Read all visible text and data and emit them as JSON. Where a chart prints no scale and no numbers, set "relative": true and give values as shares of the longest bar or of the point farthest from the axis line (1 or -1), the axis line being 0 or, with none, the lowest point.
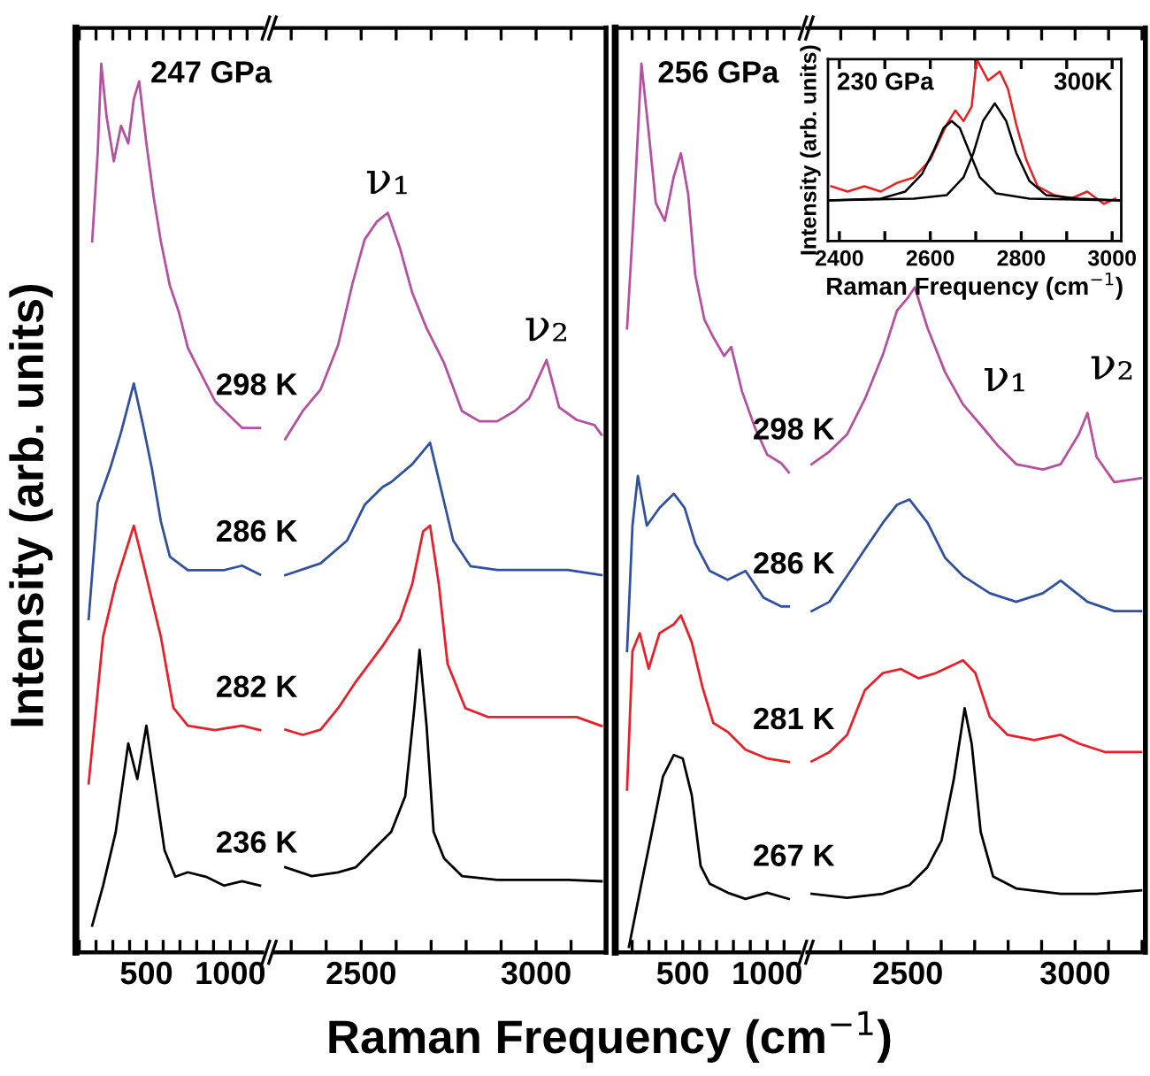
{
  "chart_data": [
    {
      "type": "line",
      "relative": true,
      "title": "247 GPa",
      "xlabel": "Raman Frequency (cm$^{−1}$)",
      "ylabel": "Intensity (arb. units)",
      "xlim": [
        80,
        1190
      ],
      "xticks": [
        {
          "value": 100,
          "label": null
        },
        {
          "value": 200,
          "label": null
        },
        {
          "value": 300,
          "label": null
        },
        {
          "value": 400,
          "label": null
        },
        500,
        {
          "value": 600,
          "label": null
        },
        {
          "value": 700,
          "label": null
        },
        {
          "value": 800,
          "label": null
        },
        {
          "value": 900,
          "label": null
        },
        1000,
        {
          "value": 1100,
          "label": null
        }
      ],
      "series": [
        {
          "name": "298 K",
          "color": "#b5519e",
          "x": [
            177,
            210,
            231,
            263,
            306,
            349,
            392,
            425,
            457,
            500,
            543,
            586,
            640,
            694,
            747,
            801,
            855,
            909,
            962,
            1016,
            1070,
            1124,
            1177
          ],
          "values": [
            0.8,
            0.9,
            1.0,
            0.94,
            0.89,
            0.93,
            0.91,
            0.96,
            0.98,
            0.91,
            0.85,
            0.8,
            0.75,
            0.72,
            0.68,
            0.66,
            0.64,
            0.62,
            0.61,
            0.6,
            0.59,
            0.59,
            0.59
          ]
        },
        {
          "name": "286 K",
          "color": "#3050a0",
          "x": [
            156,
            210,
            285,
            349,
            425,
            478,
            532,
            586,
            640,
            747,
            855,
            962,
            1070,
            1177
          ],
          "values": [
            0.375,
            0.505,
            0.545,
            0.585,
            0.64,
            0.595,
            0.545,
            0.485,
            0.445,
            0.43,
            0.43,
            0.43,
            0.435,
            0.425
          ]
        },
        {
          "name": "282 K",
          "color": "#e8202a",
          "x": [
            156,
            242,
            317,
            425,
            478,
            586,
            661,
            747,
            909,
            1070,
            1177
          ],
          "values": [
            0.19,
            0.355,
            0.415,
            0.48,
            0.44,
            0.355,
            0.275,
            0.255,
            0.25,
            0.255,
            0.25
          ]
        },
        {
          "name": "236 K",
          "color": "#000000",
          "x": [
            177,
            242,
            317,
            392,
            446,
            500,
            554,
            608,
            672,
            747,
            855,
            962,
            1070,
            1177
          ],
          "values": [
            0.03,
            0.075,
            0.135,
            0.235,
            0.195,
            0.255,
            0.185,
            0.115,
            0.085,
            0.09,
            0.085,
            0.075,
            0.08,
            0.075
          ]
        }
      ]
    },
    {
      "type": "line",
      "relative": true,
      "xlim": [
        2250,
        3200
      ],
      "xticks": [
        {
          "value": 2300,
          "label": null
        },
        {
          "value": 2400,
          "label": null
        },
        2500,
        {
          "value": 2600,
          "label": null
        },
        {
          "value": 2700,
          "label": null
        },
        {
          "value": 2800,
          "label": null
        },
        {
          "value": 2900,
          "label": null
        },
        3000,
        {
          "value": 3100,
          "label": null
        }
      ],
      "annotations": [
        {
          "text": "ν₁",
          "x": 2576,
          "y": 1.0
        },
        {
          "text": "ν₂",
          "x": 3030,
          "y": 0.801
        }
      ],
      "series": [
        {
          "color": "#b5519e",
          "x": [
            2283,
            2333,
            2384,
            2434,
            2475,
            2510,
            2545,
            2576,
            2611,
            2646,
            2687,
            2737,
            2788,
            2838,
            2889,
            2939,
            2980,
            3030,
            3066,
            3116,
            3167,
            3187
          ],
          "values": [
            0.694,
            0.732,
            0.761,
            0.821,
            0.904,
            0.964,
            0.988,
            1.0,
            0.952,
            0.892,
            0.844,
            0.797,
            0.732,
            0.718,
            0.718,
            0.732,
            0.749,
            0.801,
            0.737,
            0.72,
            0.713,
            0.7
          ]
        },
        {
          "color": "#3050a0",
          "x": [
            2283,
            2384,
            2460,
            2510,
            2561,
            2586,
            2646,
            2697,
            2727,
            2763,
            2813,
            2889,
            2990,
            3091,
            3187
          ],
          "values": [
            0.51,
            0.526,
            0.557,
            0.605,
            0.629,
            0.636,
            0.66,
            0.689,
            0.629,
            0.557,
            0.522,
            0.517,
            0.517,
            0.517,
            0.51
          ]
        },
        {
          "color": "#e8202a",
          "x": [
            2283,
            2333,
            2384,
            2434,
            2485,
            2561,
            2611,
            2646,
            2677,
            2697,
            2722,
            2747,
            2798,
            2864,
            2939,
            3040,
            3116,
            3187
          ],
          "values": [
            0.301,
            0.294,
            0.301,
            0.33,
            0.366,
            0.414,
            0.45,
            0.498,
            0.569,
            0.577,
            0.498,
            0.39,
            0.33,
            0.318,
            0.318,
            0.318,
            0.318,
            0.306
          ]
        },
        {
          "color": "#000000",
          "x": [
            2283,
            2359,
            2434,
            2485,
            2535,
            2586,
            2626,
            2652,
            2667,
            2687,
            2707,
            2737,
            2788,
            2889,
            2990,
            3091,
            3187
          ],
          "values": [
            0.115,
            0.103,
            0.108,
            0.115,
            0.139,
            0.163,
            0.211,
            0.33,
            0.409,
            0.306,
            0.163,
            0.127,
            0.103,
            0.098,
            0.098,
            0.098,
            0.096
          ]
        }
      ]
    },
    {
      "type": "line",
      "relative": true,
      "title": "256 GPa",
      "xlim": [
        100,
        1190
      ],
      "xticks": [
        {
          "value": 200,
          "label": null
        },
        {
          "value": 300,
          "label": null
        },
        {
          "value": 400,
          "label": null
        },
        500,
        {
          "value": 600,
          "label": null
        },
        {
          "value": 700,
          "label": null
        },
        {
          "value": 800,
          "label": null
        },
        {
          "value": 900,
          "label": null
        },
        1000,
        {
          "value": 1100,
          "label": null
        }
      ],
      "series": [
        {
          "name": "298 K",
          "color": "#b5519e",
          "x": [
            170,
            213,
            255,
            298,
            340,
            394,
            447,
            489,
            532,
            574,
            628,
            681,
            745,
            787,
            851,
            926,
            1000,
            1085,
            1128
          ],
          "values": [
            0.702,
            0.843,
            1.0,
            0.923,
            0.843,
            0.823,
            0.873,
            0.899,
            0.853,
            0.762,
            0.712,
            0.692,
            0.671,
            0.681,
            0.631,
            0.591,
            0.56,
            0.55,
            0.54
          ]
        },
        {
          "name": "286 K",
          "color": "#3050a0",
          "x": [
            170,
            202,
            234,
            287,
            362,
            447,
            511,
            574,
            660,
            766,
            872,
            979,
            1085,
            1128
          ],
          "values": [
            0.339,
            0.48,
            0.536,
            0.48,
            0.5,
            0.516,
            0.5,
            0.46,
            0.429,
            0.419,
            0.429,
            0.399,
            0.389,
            0.389
          ]
        },
        {
          "name": "281 K",
          "color": "#e8202a",
          "x": [
            170,
            202,
            245,
            298,
            362,
            447,
            489,
            553,
            617,
            681,
            766,
            872,
            1000,
            1128
          ],
          "values": [
            0.183,
            0.339,
            0.359,
            0.319,
            0.359,
            0.369,
            0.379,
            0.349,
            0.298,
            0.258,
            0.248,
            0.228,
            0.218,
            0.214
          ]
        },
        {
          "name": "267 K",
          "color": "#000000",
          "x": [
            181,
            255,
            319,
            383,
            447,
            500,
            553,
            606,
            660,
            766,
            872,
            1000,
            1128
          ],
          "values": [
            0.006,
            0.077,
            0.137,
            0.198,
            0.222,
            0.218,
            0.177,
            0.097,
            0.077,
            0.067,
            0.06,
            0.067,
            0.06
          ]
        }
      ]
    },
    {
      "type": "line",
      "relative": true,
      "xlim": [
        2200,
        3210
      ],
      "xticks": [
        {
          "value": 2300,
          "label": null
        },
        {
          "value": 2400,
          "label": null
        },
        2500,
        {
          "value": 2600,
          "label": null
        },
        {
          "value": 2700,
          "label": null
        },
        {
          "value": 2800,
          "label": null
        },
        {
          "value": 2900,
          "label": null
        },
        3000,
        {
          "value": 3100,
          "label": null
        },
        {
          "value": 3200,
          "label": null
        }
      ],
      "annotations": [
        {
          "text": "ν₁",
          "x": 2718,
          "y": 0.793
        },
        {
          "text": "ν₂",
          "x": 3037,
          "y": 0.811
        }
      ],
      "series": [
        {
          "color": "#b5519e",
          "x": [
            2213,
            2266,
            2319,
            2372,
            2426,
            2468,
            2500,
            2521,
            2559,
            2612,
            2665,
            2718,
            2771,
            2824,
            2904,
            2957,
            3011,
            3037,
            3064,
            3117,
            3197
          ],
          "values": [
            0.734,
            0.753,
            0.779,
            0.832,
            0.899,
            0.965,
            0.984,
            1.0,
            0.939,
            0.872,
            0.824,
            0.793,
            0.761,
            0.734,
            0.726,
            0.734,
            0.779,
            0.811,
            0.745,
            0.707,
            0.713
          ]
        },
        {
          "color": "#3050a0",
          "x": [
            2213,
            2266,
            2319,
            2372,
            2426,
            2468,
            2505,
            2559,
            2612,
            2665,
            2745,
            2824,
            2904,
            2957,
            3037,
            3117,
            3197
          ],
          "values": [
            0.513,
            0.527,
            0.566,
            0.606,
            0.646,
            0.673,
            0.681,
            0.646,
            0.593,
            0.566,
            0.54,
            0.527,
            0.54,
            0.559,
            0.527,
            0.513,
            0.513
          ]
        },
        {
          "color": "#e8202a",
          "x": [
            2213,
            2266,
            2319,
            2372,
            2426,
            2479,
            2532,
            2585,
            2665,
            2702,
            2745,
            2798,
            2878,
            2957,
            3011,
            3090,
            3197
          ],
          "values": [
            0.287,
            0.301,
            0.327,
            0.394,
            0.42,
            0.426,
            0.412,
            0.42,
            0.439,
            0.42,
            0.354,
            0.327,
            0.319,
            0.327,
            0.314,
            0.301,
            0.301
          ]
        },
        {
          "color": "#000000",
          "x": [
            2213,
            2319,
            2426,
            2505,
            2559,
            2601,
            2638,
            2670,
            2691,
            2718,
            2755,
            2824,
            2957,
            3064,
            3197
          ],
          "values": [
            0.088,
            0.082,
            0.088,
            0.101,
            0.128,
            0.168,
            0.261,
            0.367,
            0.314,
            0.181,
            0.114,
            0.096,
            0.088,
            0.088,
            0.093
          ]
        }
      ]
    },
    {
      "type": "line",
      "relative": true,
      "title": "230 GPa",
      "annotations": [
        "300K"
      ],
      "xlabel": "Raman Frequency (cm$^{−1}$)",
      "ylabel": "Intensity (arb. units)",
      "xlim": [
        2375,
        3020
      ],
      "xticks": [
        2400,
        {
          "value": 2500,
          "label": null
        },
        2600,
        {
          "value": 2700,
          "label": null
        },
        2800,
        {
          "value": 2900,
          "label": null
        },
        3000
      ],
      "series": [
        {
          "color": "#e82020",
          "x": [
            2382,
            2418,
            2455,
            2491,
            2527,
            2564,
            2582,
            2600,
            2618,
            2636,
            2655,
            2673,
            2691,
            2702,
            2727,
            2753,
            2771,
            2789,
            2811,
            2836,
            2873,
            2909,
            2945,
            2982,
            3007
          ],
          "values": [
            0.301,
            0.272,
            0.301,
            0.272,
            0.32,
            0.35,
            0.398,
            0.447,
            0.544,
            0.641,
            0.718,
            0.66,
            0.738,
            1.0,
            0.883,
            0.932,
            0.835,
            0.641,
            0.447,
            0.301,
            0.252,
            0.233,
            0.272,
            0.204,
            0.233
          ]
        },
        {
          "color": "#000000",
          "x": [
            2375,
            2491,
            2545,
            2582,
            2607,
            2629,
            2647,
            2665,
            2687,
            2709,
            2745,
            2818,
            3015
          ],
          "values": [
            0.223,
            0.233,
            0.272,
            0.369,
            0.495,
            0.621,
            0.66,
            0.621,
            0.485,
            0.35,
            0.262,
            0.233,
            0.223
          ]
        },
        {
          "color": "#000000",
          "x": [
            2375,
            2564,
            2636,
            2673,
            2695,
            2716,
            2742,
            2767,
            2789,
            2818,
            2855,
            2927,
            3015
          ],
          "values": [
            0.223,
            0.233,
            0.252,
            0.35,
            0.485,
            0.66,
            0.757,
            0.66,
            0.485,
            0.33,
            0.252,
            0.233,
            0.223
          ]
        }
      ]
    }
  ]
}
